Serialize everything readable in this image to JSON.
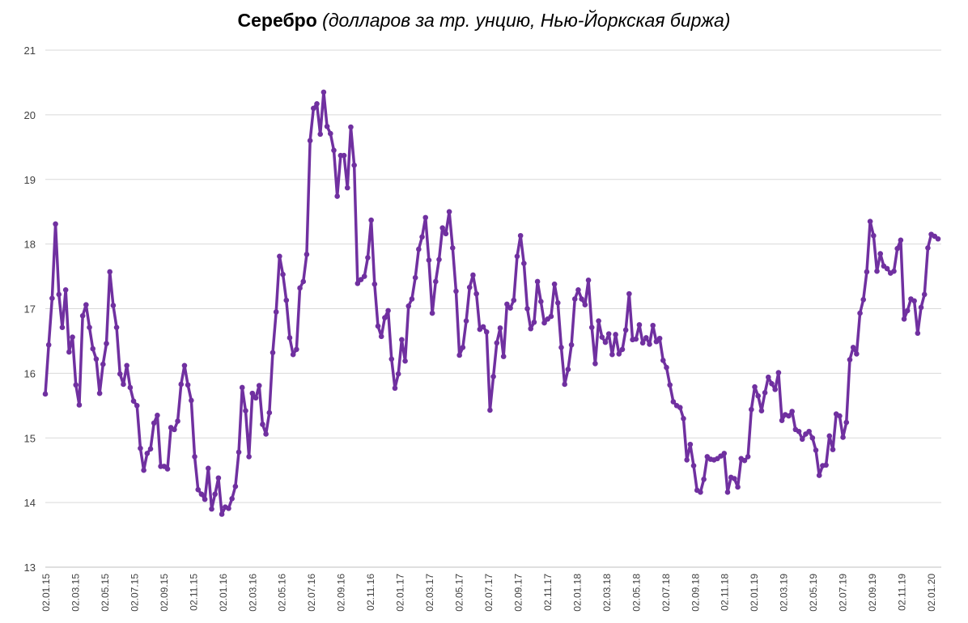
{
  "chart_data": {
    "type": "line",
    "title": "Серебро",
    "subtitle": "(долларов за тр. унцию, Нью-Йоркская биржа)",
    "ylim": [
      13,
      21
    ],
    "yticks": [
      13,
      14,
      15,
      16,
      17,
      18,
      19,
      20,
      21
    ],
    "grid": true,
    "legend": "none",
    "x_tick_labels": [
      "02.01.15",
      "02.03.15",
      "02.05.15",
      "02.07.15",
      "02.09.15",
      "02.11.15",
      "02.01.16",
      "02.03.16",
      "02.05.16",
      "02.07.16",
      "02.09.16",
      "02.11.16",
      "02.01.17",
      "02.03.17",
      "02.05.17",
      "02.07.17",
      "02.09.17",
      "02.11.17",
      "02.01.18",
      "02.03.18",
      "02.05.18",
      "02.07.18",
      "02.09.18",
      "02.11.18",
      "02.01.19",
      "02.03.19",
      "02.05.19",
      "02.07.19",
      "02.09.19",
      "02.11.19",
      "02.01.20"
    ],
    "series": [
      {
        "color": "#7030A0",
        "values": [
          15.68,
          16.44,
          17.16,
          18.31,
          17.22,
          16.71,
          17.29,
          16.33,
          16.56,
          15.82,
          15.51,
          16.89,
          17.06,
          16.71,
          16.38,
          16.22,
          15.69,
          16.14,
          16.46,
          17.57,
          17.05,
          16.71,
          15.99,
          15.83,
          16.12,
          15.78,
          15.57,
          15.5,
          14.84,
          14.5,
          14.76,
          14.83,
          15.23,
          15.35,
          14.56,
          14.56,
          14.52,
          15.16,
          15.13,
          15.26,
          15.83,
          16.12,
          15.82,
          15.58,
          14.71,
          14.2,
          14.13,
          14.05,
          14.53,
          13.9,
          14.13,
          14.38,
          13.82,
          13.93,
          13.91,
          14.06,
          14.25,
          14.78,
          15.78,
          15.42,
          14.71,
          15.69,
          15.62,
          15.81,
          15.21,
          15.06,
          15.39,
          16.32,
          16.95,
          17.81,
          17.53,
          17.13,
          16.55,
          16.29,
          16.37,
          17.32,
          17.42,
          17.84,
          19.6,
          20.1,
          20.17,
          19.7,
          20.35,
          19.82,
          19.71,
          19.45,
          18.74,
          19.37,
          19.37,
          18.87,
          19.81,
          19.22,
          17.39,
          17.45,
          17.5,
          17.79,
          18.37,
          17.38,
          16.73,
          16.57,
          16.86,
          16.97,
          16.22,
          15.77,
          15.99,
          16.52,
          16.19,
          17.04,
          17.15,
          17.48,
          17.92,
          18.11,
          18.41,
          17.75,
          16.93,
          17.42,
          17.76,
          18.25,
          18.16,
          18.5,
          17.94,
          17.27,
          16.28,
          16.4,
          16.81,
          17.33,
          17.52,
          17.23,
          16.68,
          16.72,
          16.64,
          15.43,
          15.95,
          16.47,
          16.7,
          16.26,
          17.07,
          17.01,
          17.13,
          17.81,
          18.13,
          17.7,
          17.0,
          16.69,
          16.79,
          17.42,
          17.11,
          16.78,
          16.84,
          16.88,
          17.38,
          17.09,
          16.4,
          15.83,
          16.06,
          16.44,
          17.15,
          17.29,
          17.15,
          17.06,
          17.44,
          16.71,
          16.15,
          16.81,
          16.56,
          16.48,
          16.61,
          16.29,
          16.6,
          16.3,
          16.37,
          16.67,
          17.23,
          16.52,
          16.53,
          16.75,
          16.47,
          16.55,
          16.45,
          16.74,
          16.49,
          16.54,
          16.2,
          16.09,
          15.82,
          15.56,
          15.5,
          15.47,
          15.3,
          14.66,
          14.9,
          14.57,
          14.19,
          14.16,
          14.36,
          14.71,
          14.67,
          14.66,
          14.68,
          14.72,
          14.76,
          14.16,
          14.39,
          14.37,
          14.24,
          14.68,
          14.65,
          14.71,
          15.44,
          15.79,
          15.65,
          15.42,
          15.7,
          15.94,
          15.84,
          15.75,
          16.01,
          15.27,
          15.36,
          15.34,
          15.41,
          15.13,
          15.1,
          14.98,
          15.06,
          15.1,
          15.0,
          14.81,
          14.42,
          14.57,
          14.58,
          15.03,
          14.82,
          15.37,
          15.34,
          15.01,
          15.24,
          16.21,
          16.4,
          16.3,
          16.93,
          17.14,
          17.57,
          18.35,
          18.13,
          17.58,
          17.85,
          17.66,
          17.62,
          17.55,
          17.58,
          17.93,
          18.06,
          16.84,
          16.97,
          17.15,
          17.12,
          16.62,
          17.02,
          17.22,
          17.94,
          18.15,
          18.12,
          18.08
        ]
      }
    ]
  }
}
